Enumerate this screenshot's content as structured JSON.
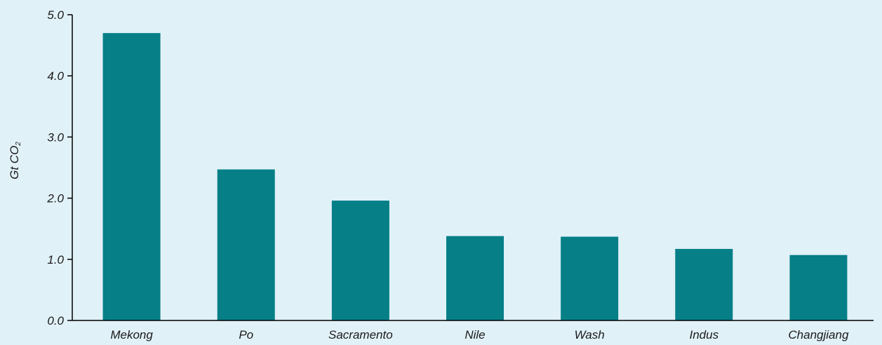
{
  "colors": {
    "background": "#e1f1f8",
    "bar": "#067f87",
    "axis": "#000000",
    "text": "#1a1a1a"
  },
  "chart_data": {
    "type": "bar",
    "title": "",
    "xlabel": "",
    "ylabel": "Gt CO",
    "ylabel_subscript": "2",
    "ylim": [
      0,
      5
    ],
    "yticks": [
      0,
      1,
      2,
      3,
      4,
      5
    ],
    "ytick_labels": [
      "0.0",
      "1.0",
      "2.0",
      "3.0",
      "4.0",
      "5.0"
    ],
    "grid": false,
    "legend": "none",
    "categories": [
      "Mekong",
      "Po",
      "Sacramento",
      "Nile",
      "Wash",
      "Indus",
      "Changjiang"
    ],
    "values": [
      4.7,
      2.47,
      1.96,
      1.38,
      1.37,
      1.17,
      1.07
    ]
  }
}
